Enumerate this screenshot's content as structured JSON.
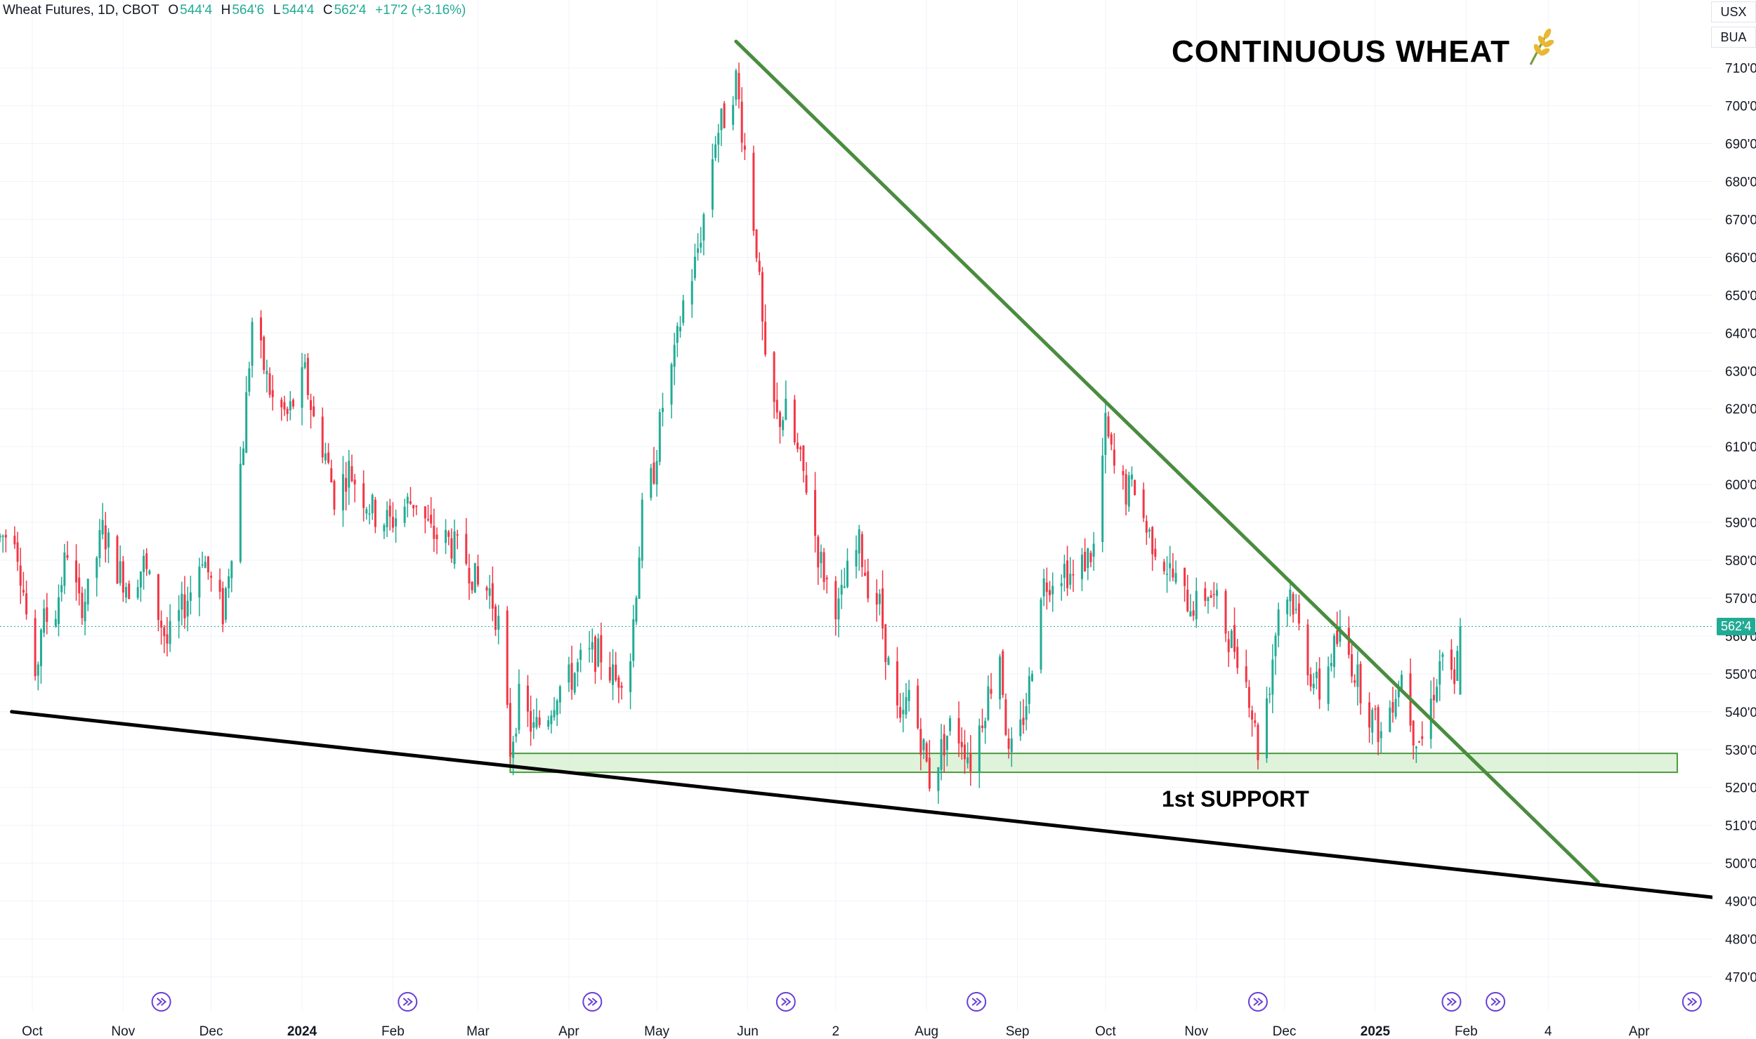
{
  "header": {
    "symbol": "Wheat Futures, 1D, CBOT",
    "o_label": "O",
    "o_value": "544'4",
    "h_label": "H",
    "h_value": "564'6",
    "l_label": "L",
    "l_value": "544'4",
    "c_label": "C",
    "c_value": "562'4",
    "change": "+17'2 (+3.16%)"
  },
  "units": [
    "USX",
    "BUA"
  ],
  "annotations": {
    "title": "CONTINUOUS WHEAT",
    "title_icon": "wheat-icon",
    "support_label": "1st SUPPORT"
  },
  "last_price_label": "562'4",
  "colors": {
    "up": "#22ab94",
    "down": "#f23645",
    "trendline_down": "#4a8c3f",
    "trendline_up": "#000000",
    "support_fill": "#d9f0d3",
    "support_border": "#4a9a3c",
    "event_icon": "#6b3fd4"
  },
  "chart_data": {
    "type": "candlestick",
    "title": "CONTINUOUS WHEAT",
    "timeframe": "1D",
    "y_tick_labels": [
      "470'0",
      "480'0",
      "490'0",
      "500'0",
      "510'0",
      "520'0",
      "530'0",
      "540'0",
      "550'0",
      "560'0",
      "570'0",
      "580'0",
      "590'0",
      "600'0",
      "610'0",
      "620'0",
      "630'0",
      "640'0",
      "650'0",
      "660'0",
      "670'0",
      "680'0",
      "690'0",
      "700'0",
      "710'0"
    ],
    "ylim": [
      466,
      722
    ],
    "x_tick_labels": [
      "Oct",
      "Nov",
      "Dec",
      "2024",
      "Feb",
      "Mar",
      "Apr",
      "May",
      "Jun",
      "2",
      "Aug",
      "Sep",
      "Oct",
      "Nov",
      "Dec",
      "2025",
      "Feb",
      "4",
      "Apr"
    ],
    "x_tick_dates": [
      "2023-10-01",
      "2023-11-01",
      "2023-12-01",
      "2024-01-01",
      "2024-02-01",
      "2024-03-01",
      "2024-04-01",
      "2024-05-01",
      "2024-06-01",
      "2024-07-01",
      "2024-08-01",
      "2024-09-01",
      "2024-10-01",
      "2024-11-01",
      "2024-12-01",
      "2025-01-01",
      "2025-02-01",
      "2025-03-01",
      "2025-04-01"
    ],
    "xlim": [
      "2023-09-20",
      "2025-04-26"
    ],
    "last_price": 562.5,
    "close_path": [
      [
        "2023-09-20",
        586
      ],
      [
        "2023-09-25",
        588
      ],
      [
        "2023-09-28",
        572
      ],
      [
        "2023-10-02",
        545
      ],
      [
        "2023-10-04",
        563
      ],
      [
        "2023-10-09",
        567
      ],
      [
        "2023-10-13",
        583
      ],
      [
        "2023-10-17",
        568
      ],
      [
        "2023-10-20",
        571
      ],
      [
        "2023-10-25",
        588
      ],
      [
        "2023-10-30",
        578
      ],
      [
        "2023-11-03",
        573
      ],
      [
        "2023-11-08",
        579
      ],
      [
        "2023-11-13",
        566
      ],
      [
        "2023-11-16",
        558
      ],
      [
        "2023-11-20",
        565
      ],
      [
        "2023-11-24",
        572
      ],
      [
        "2023-11-28",
        582
      ],
      [
        "2023-12-01",
        574
      ],
      [
        "2023-12-05",
        566
      ],
      [
        "2023-12-08",
        584
      ],
      [
        "2023-12-12",
        612
      ],
      [
        "2023-12-15",
        643
      ],
      [
        "2023-12-19",
        631
      ],
      [
        "2023-12-22",
        622
      ],
      [
        "2023-12-27",
        618
      ],
      [
        "2024-01-02",
        629
      ],
      [
        "2024-01-05",
        617
      ],
      [
        "2024-01-09",
        608
      ],
      [
        "2024-01-12",
        597
      ],
      [
        "2024-01-17",
        604
      ],
      [
        "2024-01-22",
        597
      ],
      [
        "2024-01-26",
        592
      ],
      [
        "2024-01-31",
        590
      ],
      [
        "2024-02-06",
        595
      ],
      [
        "2024-02-09",
        596
      ],
      [
        "2024-02-14",
        587
      ],
      [
        "2024-02-20",
        585
      ],
      [
        "2024-02-26",
        580
      ],
      [
        "2024-03-01",
        573
      ],
      [
        "2024-03-05",
        572
      ],
      [
        "2024-03-08",
        563
      ],
      [
        "2024-03-12",
        530
      ],
      [
        "2024-03-15",
        543
      ],
      [
        "2024-03-20",
        535
      ],
      [
        "2024-03-25",
        540
      ],
      [
        "2024-03-28",
        546
      ],
      [
        "2024-04-02",
        549
      ],
      [
        "2024-04-05",
        553
      ],
      [
        "2024-04-09",
        555
      ],
      [
        "2024-04-12",
        555
      ],
      [
        "2024-04-17",
        548
      ],
      [
        "2024-04-22",
        555
      ],
      [
        "2024-04-26",
        592
      ],
      [
        "2024-04-30",
        604
      ],
      [
        "2024-05-03",
        621
      ],
      [
        "2024-05-07",
        633
      ],
      [
        "2024-05-10",
        648
      ],
      [
        "2024-05-14",
        658
      ],
      [
        "2024-05-17",
        671
      ],
      [
        "2024-05-21",
        692
      ],
      [
        "2024-05-24",
        697
      ],
      [
        "2024-05-28",
        707
      ],
      [
        "2024-05-31",
        688
      ],
      [
        "2024-06-04",
        663
      ],
      [
        "2024-06-07",
        630
      ],
      [
        "2024-06-11",
        617
      ],
      [
        "2024-06-14",
        619
      ],
      [
        "2024-06-18",
        608
      ],
      [
        "2024-06-21",
        600
      ],
      [
        "2024-06-25",
        582
      ],
      [
        "2024-06-28",
        574
      ],
      [
        "2024-07-02",
        567
      ],
      [
        "2024-07-05",
        576
      ],
      [
        "2024-07-09",
        584
      ],
      [
        "2024-07-12",
        574
      ],
      [
        "2024-07-16",
        568
      ],
      [
        "2024-07-19",
        552
      ],
      [
        "2024-07-23",
        535
      ],
      [
        "2024-07-26",
        545
      ],
      [
        "2024-07-31",
        530
      ],
      [
        "2024-08-02",
        522
      ],
      [
        "2024-08-06",
        530
      ],
      [
        "2024-08-09",
        536
      ],
      [
        "2024-08-13",
        533
      ],
      [
        "2024-08-16",
        527
      ],
      [
        "2024-08-21",
        542
      ],
      [
        "2024-08-26",
        556
      ],
      [
        "2024-08-29",
        527
      ],
      [
        "2024-09-02",
        535
      ],
      [
        "2024-09-05",
        547
      ],
      [
        "2024-09-09",
        573
      ],
      [
        "2024-09-13",
        576
      ],
      [
        "2024-09-17",
        578
      ],
      [
        "2024-09-20",
        575
      ],
      [
        "2024-09-24",
        580
      ],
      [
        "2024-09-27",
        583
      ],
      [
        "2024-10-01",
        615
      ],
      [
        "2024-10-04",
        604
      ],
      [
        "2024-10-08",
        598
      ],
      [
        "2024-10-11",
        600
      ],
      [
        "2024-10-15",
        588
      ],
      [
        "2024-10-18",
        584
      ],
      [
        "2024-10-23",
        577
      ],
      [
        "2024-10-28",
        570
      ],
      [
        "2024-11-01",
        568
      ],
      [
        "2024-11-05",
        572
      ],
      [
        "2024-11-08",
        568
      ],
      [
        "2024-11-12",
        560
      ],
      [
        "2024-11-15",
        556
      ],
      [
        "2024-11-19",
        545
      ],
      [
        "2024-11-22",
        530
      ],
      [
        "2024-11-26",
        548
      ],
      [
        "2024-11-29",
        568
      ],
      [
        "2024-12-03",
        572
      ],
      [
        "2024-12-06",
        562
      ],
      [
        "2024-12-10",
        550
      ],
      [
        "2024-12-13",
        545
      ],
      [
        "2024-12-17",
        555
      ],
      [
        "2024-12-20",
        560
      ],
      [
        "2024-12-24",
        553
      ],
      [
        "2024-12-30",
        540
      ],
      [
        "2025-01-03",
        534
      ],
      [
        "2025-01-07",
        544
      ],
      [
        "2025-01-10",
        550
      ],
      [
        "2025-01-14",
        535
      ],
      [
        "2025-01-17",
        533
      ],
      [
        "2025-01-21",
        546
      ],
      [
        "2025-01-24",
        556
      ],
      [
        "2025-01-28",
        545
      ],
      [
        "2025-01-30",
        563
      ]
    ],
    "support_zone": {
      "label": "1st SUPPORT",
      "y_range": [
        524,
        529
      ],
      "x_range": [
        "2024-03-12",
        "2025-04-14"
      ]
    },
    "trendlines": [
      {
        "color": "#4a8c3f",
        "points": [
          [
            "2024-05-28",
            717
          ],
          [
            "2025-03-18",
            495
          ]
        ]
      },
      {
        "color": "#000000",
        "points": [
          [
            "2023-09-24",
            540
          ],
          [
            "2025-04-26",
            491
          ]
        ]
      }
    ],
    "event_dates": [
      "2023-11-14",
      "2024-02-06",
      "2024-04-09",
      "2024-06-14",
      "2024-08-18",
      "2024-11-22",
      "2025-01-27",
      "2025-02-11",
      "2025-04-19"
    ],
    "grid": true
  }
}
